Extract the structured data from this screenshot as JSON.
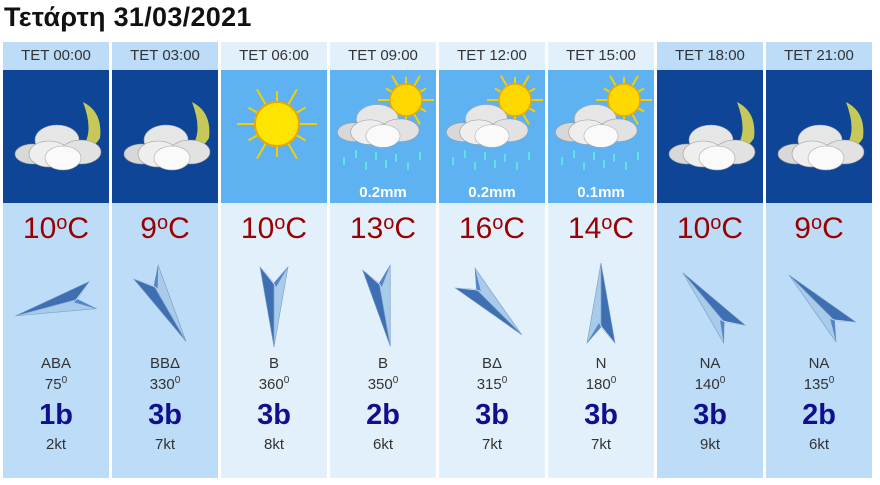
{
  "title": "Τετάρτη 31/03/2021",
  "colors": {
    "night_bg": "#bcdcf8",
    "day_bg": "#e2f0fc",
    "night_sky": "#0e4597",
    "day_sky": "#5fb2f2",
    "temp": "#9a0000",
    "beaufort": "#10108e"
  },
  "forecast": [
    {
      "time": "ΤΕΤ 00:00",
      "period": "night",
      "icon": "cloud-moon-icon",
      "rain": "",
      "temp": "10",
      "unit": "C",
      "dir": "ΑΒΑ",
      "deg": "75",
      "deg_sup": "0",
      "beaufort": "1b",
      "knots": "2kt"
    },
    {
      "time": "ΤΕΤ 03:00",
      "period": "night",
      "icon": "cloud-moon-icon",
      "rain": "",
      "temp": "9",
      "unit": "C",
      "dir": "ΒΒΔ",
      "deg": "330",
      "deg_sup": "0",
      "beaufort": "3b",
      "knots": "7kt"
    },
    {
      "time": "ΤΕΤ 06:00",
      "period": "day",
      "icon": "sun-icon",
      "rain": "",
      "temp": "10",
      "unit": "C",
      "dir": "Β",
      "deg": "360",
      "deg_sup": "0",
      "beaufort": "3b",
      "knots": "8kt"
    },
    {
      "time": "ΤΕΤ 09:00",
      "period": "day",
      "icon": "sun-cloud-rain-icon",
      "rain": "0.2mm",
      "temp": "13",
      "unit": "C",
      "dir": "Β",
      "deg": "350",
      "deg_sup": "0",
      "beaufort": "2b",
      "knots": "6kt"
    },
    {
      "time": "ΤΕΤ 12:00",
      "period": "day",
      "icon": "sun-cloud-rain-icon",
      "rain": "0.2mm",
      "temp": "16",
      "unit": "C",
      "dir": "ΒΔ",
      "deg": "315",
      "deg_sup": "0",
      "beaufort": "3b",
      "knots": "7kt"
    },
    {
      "time": "ΤΕΤ 15:00",
      "period": "day",
      "icon": "sun-cloud-rain-icon",
      "rain": "0.1mm",
      "temp": "14",
      "unit": "C",
      "dir": "Ν",
      "deg": "180",
      "deg_sup": "0",
      "beaufort": "3b",
      "knots": "7kt"
    },
    {
      "time": "ΤΕΤ 18:00",
      "period": "night",
      "icon": "cloud-moon-icon",
      "rain": "",
      "temp": "10",
      "unit": "C",
      "dir": "ΝΑ",
      "deg": "140",
      "deg_sup": "0",
      "beaufort": "3b",
      "knots": "9kt"
    },
    {
      "time": "ΤΕΤ 21:00",
      "period": "night",
      "icon": "cloud-moon-icon",
      "rain": "",
      "temp": "9",
      "unit": "C",
      "dir": "ΝΑ",
      "deg": "135",
      "deg_sup": "0",
      "beaufort": "2b",
      "knots": "6kt"
    }
  ]
}
